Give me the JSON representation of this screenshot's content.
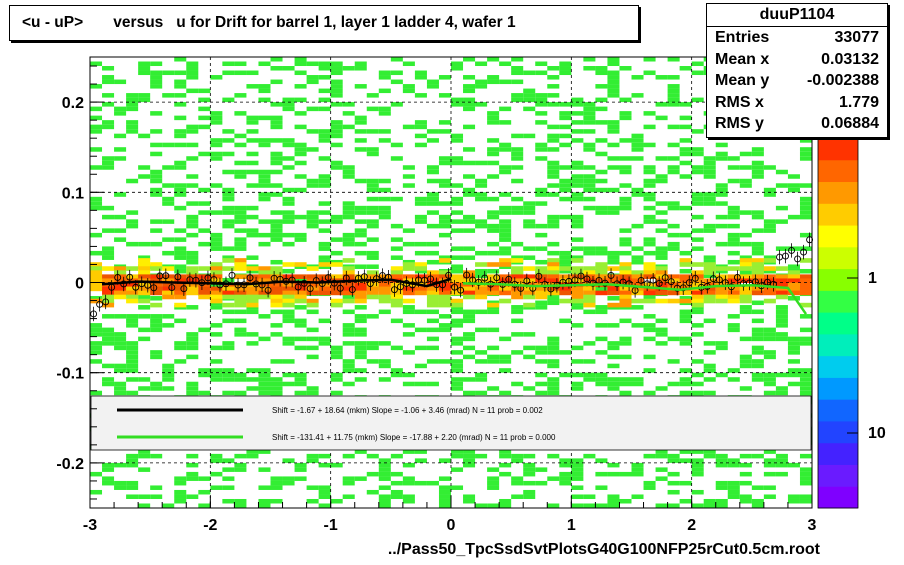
{
  "title": "<u - uP>       versus   u for Drift for barrel 1, layer 1 ladder 4, wafer 1",
  "stats": {
    "name": "duuP1104",
    "rows": [
      {
        "label": "Entries",
        "value": "33077"
      },
      {
        "label": "Mean x",
        "value": "0.03132"
      },
      {
        "label": "Mean y",
        "value": "-0.002388"
      },
      {
        "label": "RMS x",
        "value": "1.779"
      },
      {
        "label": "RMS y",
        "value": "0.06884"
      }
    ]
  },
  "xlabel": "../Pass50_TpcSsdSvtPlotsG40G100NFP25rCut0.5cm.root",
  "colors": {
    "fit_black": "#000000",
    "fit_green": "#33dd22",
    "scatter_green": "#33ee33",
    "band_orange": "#ff9900",
    "band_red": "#ff3300"
  },
  "chart_data": {
    "type": "heatmap",
    "xlim": [
      -3,
      3
    ],
    "ylim": [
      -0.25,
      0.25
    ],
    "x_ticks": [
      "-3",
      "-2",
      "-1",
      "0",
      "1",
      "2",
      "3"
    ],
    "y_ticks": [
      "0.2",
      "0.1",
      "0",
      "-0.1",
      "-0.2"
    ],
    "colorbar_ticks": [
      "1",
      "10"
    ],
    "grid": true,
    "legend": [
      {
        "label": "Shift =    -1.67 + 18.64 (mkm) Slope =    -1.06 + 3.46 (mrad)  N = 11 prob = 0.002",
        "color": "#000000"
      },
      {
        "label": "Shift =  -131.41 + 11.75 (mkm) Slope =   -17.88 + 2.20 (mrad)  N = 11 prob = 0.000",
        "color": "#33dd22"
      }
    ],
    "series": [
      {
        "x": [
          -2.9,
          -2.6,
          -2.3,
          -2.0,
          -1.7,
          -1.4,
          -1.1,
          -0.8,
          -0.5,
          -0.2,
          0.0
        ],
        "y": [
          -0.002,
          0.001,
          0.0,
          -0.001,
          -0.002,
          0.001,
          0.0,
          0.002,
          0.003,
          -0.004,
          0.004
        ]
      },
      {
        "x": [
          0.1,
          0.4,
          0.7,
          1.0,
          1.3,
          1.6,
          1.9,
          2.2,
          2.5,
          2.8,
          2.95
        ],
        "y": [
          -0.001,
          -0.002,
          -0.004,
          -0.003,
          -0.002,
          -0.005,
          -0.008,
          -0.004,
          -0.003,
          -0.006,
          -0.035
        ]
      }
    ]
  }
}
